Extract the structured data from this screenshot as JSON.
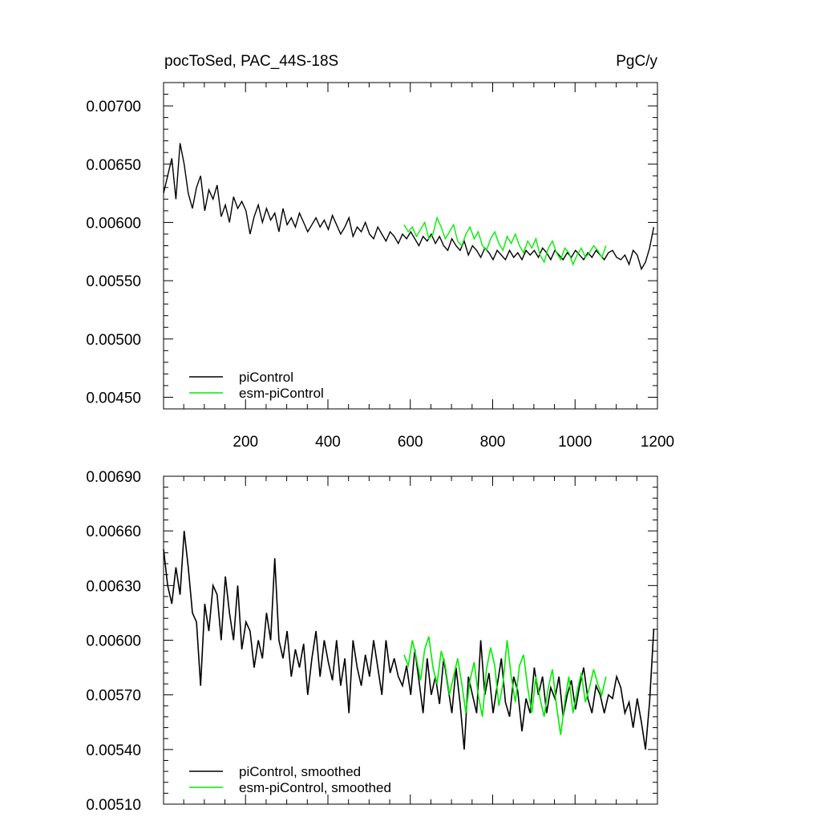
{
  "colors": {
    "pi": "#000000",
    "esm": "#00ee00",
    "axis": "#000000"
  },
  "chart_data": [
    {
      "type": "line",
      "title_left": "pocToSed, PAC_44S-18S",
      "title_right": "PgC/y",
      "xlim": [
        1,
        1200
      ],
      "ylim": [
        0.0044,
        0.0072
      ],
      "yticks": [
        0.0045,
        0.005,
        0.0055,
        0.006,
        0.0065,
        0.007
      ],
      "ytick_labels": [
        "0.00450",
        "0.00500",
        "0.00550",
        "0.00600",
        "0.00650",
        "0.00700"
      ],
      "xticks": [
        200,
        400,
        600,
        800,
        1000,
        1200
      ],
      "xtick_labels": [
        "200",
        "400",
        "600",
        "800",
        "1000",
        "1200"
      ],
      "legend_position": "bottom-left",
      "series": [
        {
          "name": "piControl",
          "color": "#000000",
          "x_start": 1,
          "x_step": 10,
          "values": [
            0.00625,
            0.0064,
            0.00655,
            0.0062,
            0.00668,
            0.0065,
            0.00625,
            0.00612,
            0.0063,
            0.0064,
            0.0061,
            0.00628,
            0.0062,
            0.00632,
            0.00605,
            0.00615,
            0.006,
            0.00622,
            0.00612,
            0.00618,
            0.0061,
            0.0059,
            0.00605,
            0.00615,
            0.006,
            0.00612,
            0.00602,
            0.00608,
            0.00592,
            0.00612,
            0.00598,
            0.00604,
            0.00596,
            0.00608,
            0.006,
            0.00592,
            0.00598,
            0.00604,
            0.00596,
            0.00602,
            0.00594,
            0.00606,
            0.00598,
            0.0059,
            0.00596,
            0.00604,
            0.00588,
            0.00596,
            0.00592,
            0.006,
            0.0059,
            0.00586,
            0.00596,
            0.0059,
            0.00584,
            0.00592,
            0.00588,
            0.00582,
            0.0059,
            0.00586,
            0.00592,
            0.00586,
            0.0058,
            0.00588,
            0.00584,
            0.0059,
            0.00582,
            0.00588,
            0.0058,
            0.00576,
            0.00586,
            0.0058,
            0.00576,
            0.00584,
            0.00572,
            0.0058,
            0.00576,
            0.0057,
            0.00578,
            0.00574,
            0.00568,
            0.00576,
            0.00572,
            0.00568,
            0.00576,
            0.0057,
            0.00574,
            0.00568,
            0.00576,
            0.00572,
            0.00576,
            0.0057,
            0.00578,
            0.00574,
            0.00568,
            0.00576,
            0.00572,
            0.00568,
            0.00574,
            0.0057,
            0.00576,
            0.00572,
            0.00568,
            0.00574,
            0.0057,
            0.00576,
            0.00572,
            0.00568,
            0.00574,
            0.00576,
            0.0057,
            0.00568,
            0.00572,
            0.00564,
            0.00576,
            0.00572,
            0.0056,
            0.00566,
            0.00578,
            0.00596
          ]
        },
        {
          "name": "esm-piControl",
          "color": "#00ee00",
          "x_start": 585,
          "x_step": 10,
          "values": [
            0.00598,
            0.00592,
            0.00596,
            0.00588,
            0.00594,
            0.006,
            0.00586,
            0.0059,
            0.00604,
            0.00596,
            0.00586,
            0.00592,
            0.00598,
            0.00584,
            0.0058,
            0.0059,
            0.00596,
            0.00586,
            0.00592,
            0.0058,
            0.00576,
            0.00586,
            0.00592,
            0.00582,
            0.00576,
            0.00588,
            0.00582,
            0.0059,
            0.0058,
            0.00574,
            0.00584,
            0.00578,
            0.00586,
            0.00572,
            0.00566,
            0.00578,
            0.00584,
            0.00574,
            0.00568,
            0.00578,
            0.00574,
            0.00564,
            0.00572,
            0.00578,
            0.0057,
            0.00574,
            0.0058,
            0.00576,
            0.0057,
            0.0058
          ]
        }
      ],
      "legend": [
        "piControl",
        "esm-piControl"
      ]
    },
    {
      "type": "line",
      "xlim": [
        1,
        1200
      ],
      "ylim": [
        0.0051,
        0.0069
      ],
      "yticks": [
        0.0051,
        0.0054,
        0.0057,
        0.006,
        0.0063,
        0.0066,
        0.0069
      ],
      "ytick_labels": [
        "0.00510",
        "0.00540",
        "0.00570",
        "0.00600",
        "0.00630",
        "0.00660",
        "0.00690"
      ],
      "xticks": [
        200,
        400,
        600,
        800,
        1000,
        1200
      ],
      "legend_position": "bottom-left",
      "series": [
        {
          "name": "piControl, smoothed",
          "color": "#000000",
          "x_start": 1,
          "x_step": 10,
          "values": [
            0.0065,
            0.0063,
            0.0062,
            0.0064,
            0.00625,
            0.0066,
            0.0064,
            0.00615,
            0.0061,
            0.00575,
            0.0062,
            0.00605,
            0.0063,
            0.00625,
            0.006,
            0.00635,
            0.00615,
            0.006,
            0.0063,
            0.00595,
            0.0061,
            0.00605,
            0.00585,
            0.006,
            0.0059,
            0.00615,
            0.006,
            0.00645,
            0.006,
            0.0059,
            0.00605,
            0.0058,
            0.00595,
            0.00585,
            0.00598,
            0.0057,
            0.0059,
            0.00605,
            0.0058,
            0.006,
            0.00588,
            0.00578,
            0.006,
            0.00575,
            0.0059,
            0.0056,
            0.006,
            0.00585,
            0.00575,
            0.00592,
            0.0058,
            0.006,
            0.00585,
            0.0057,
            0.006,
            0.00582,
            0.0059,
            0.0058,
            0.00575,
            0.00586,
            0.0057,
            0.00595,
            0.00578,
            0.0056,
            0.0059,
            0.0057,
            0.0058,
            0.00565,
            0.0059,
            0.00575,
            0.0056,
            0.00585,
            0.00565,
            0.0054,
            0.0058,
            0.0057,
            0.0056,
            0.006,
            0.0057,
            0.00582,
            0.0056,
            0.00575,
            0.0059,
            0.00566,
            0.00558,
            0.0058,
            0.00572,
            0.0055,
            0.00568,
            0.0056,
            0.00585,
            0.0057,
            0.0058,
            0.0056,
            0.00574,
            0.00568,
            0.0058,
            0.00558,
            0.0057,
            0.00578,
            0.00562,
            0.00575,
            0.00585,
            0.00568,
            0.0056,
            0.00575,
            0.0057,
            0.0056,
            0.0057,
            0.00568,
            0.0058,
            0.00574,
            0.0056,
            0.00566,
            0.00552,
            0.00568,
            0.00555,
            0.0054,
            0.00566,
            0.00606
          ]
        },
        {
          "name": "esm-piControl, smoothed",
          "color": "#00ee00",
          "x_start": 585,
          "x_step": 10,
          "values": [
            0.00592,
            0.00586,
            0.006,
            0.0059,
            0.00578,
            0.00595,
            0.00602,
            0.00585,
            0.00576,
            0.00594,
            0.00586,
            0.0057,
            0.0058,
            0.0059,
            0.00576,
            0.0056,
            0.00578,
            0.00588,
            0.0057,
            0.00558,
            0.00584,
            0.00596,
            0.00586,
            0.00564,
            0.00576,
            0.006,
            0.0058,
            0.00566,
            0.00586,
            0.00592,
            0.00574,
            0.0056,
            0.0058,
            0.00568,
            0.00558,
            0.00574,
            0.00584,
            0.00564,
            0.00548,
            0.00566,
            0.0058,
            0.0056,
            0.00572,
            0.00582,
            0.00566,
            0.00574,
            0.00584,
            0.00576,
            0.0057,
            0.0058
          ]
        }
      ],
      "legend": [
        "piControl, smoothed",
        "esm-piControl, smoothed"
      ]
    }
  ]
}
